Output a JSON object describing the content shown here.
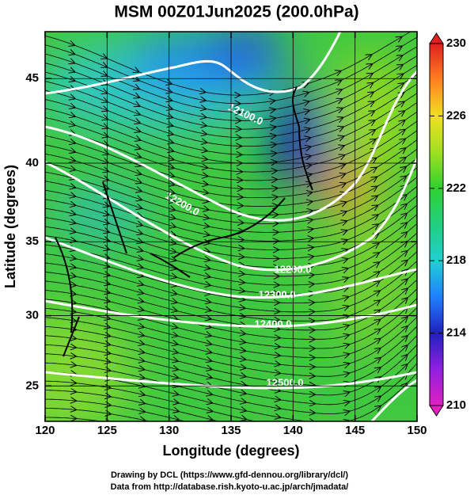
{
  "chart_data": {
    "type": "map",
    "title": "MSM 00Z01Jun2025 (200.0hPa)",
    "xlabel": "Longitude (degrees)",
    "ylabel": "Latitude  (degrees)",
    "xlim": [
      120,
      150
    ],
    "xticks": [
      120,
      125,
      130,
      135,
      140,
      145,
      150
    ],
    "ylim": [
      22.4,
      47.6
    ],
    "yticks": [
      25,
      30,
      35,
      40,
      45
    ],
    "grid": true,
    "colorbar": {
      "lim": [
        210,
        230
      ],
      "ticks": [
        210,
        214,
        218,
        222,
        226,
        230
      ]
    },
    "contour_labels": [
      "12100.0",
      "12200.0",
      "12200.0",
      "12300.0",
      "12400.0",
      "12500.0"
    ],
    "footer": [
      "Drawing by DCL (https://www.gfd-dennou.org/library/dcl/)",
      "Data from http://database.rish.kyoto-u.ac.jp/arch/jmadata/"
    ]
  }
}
